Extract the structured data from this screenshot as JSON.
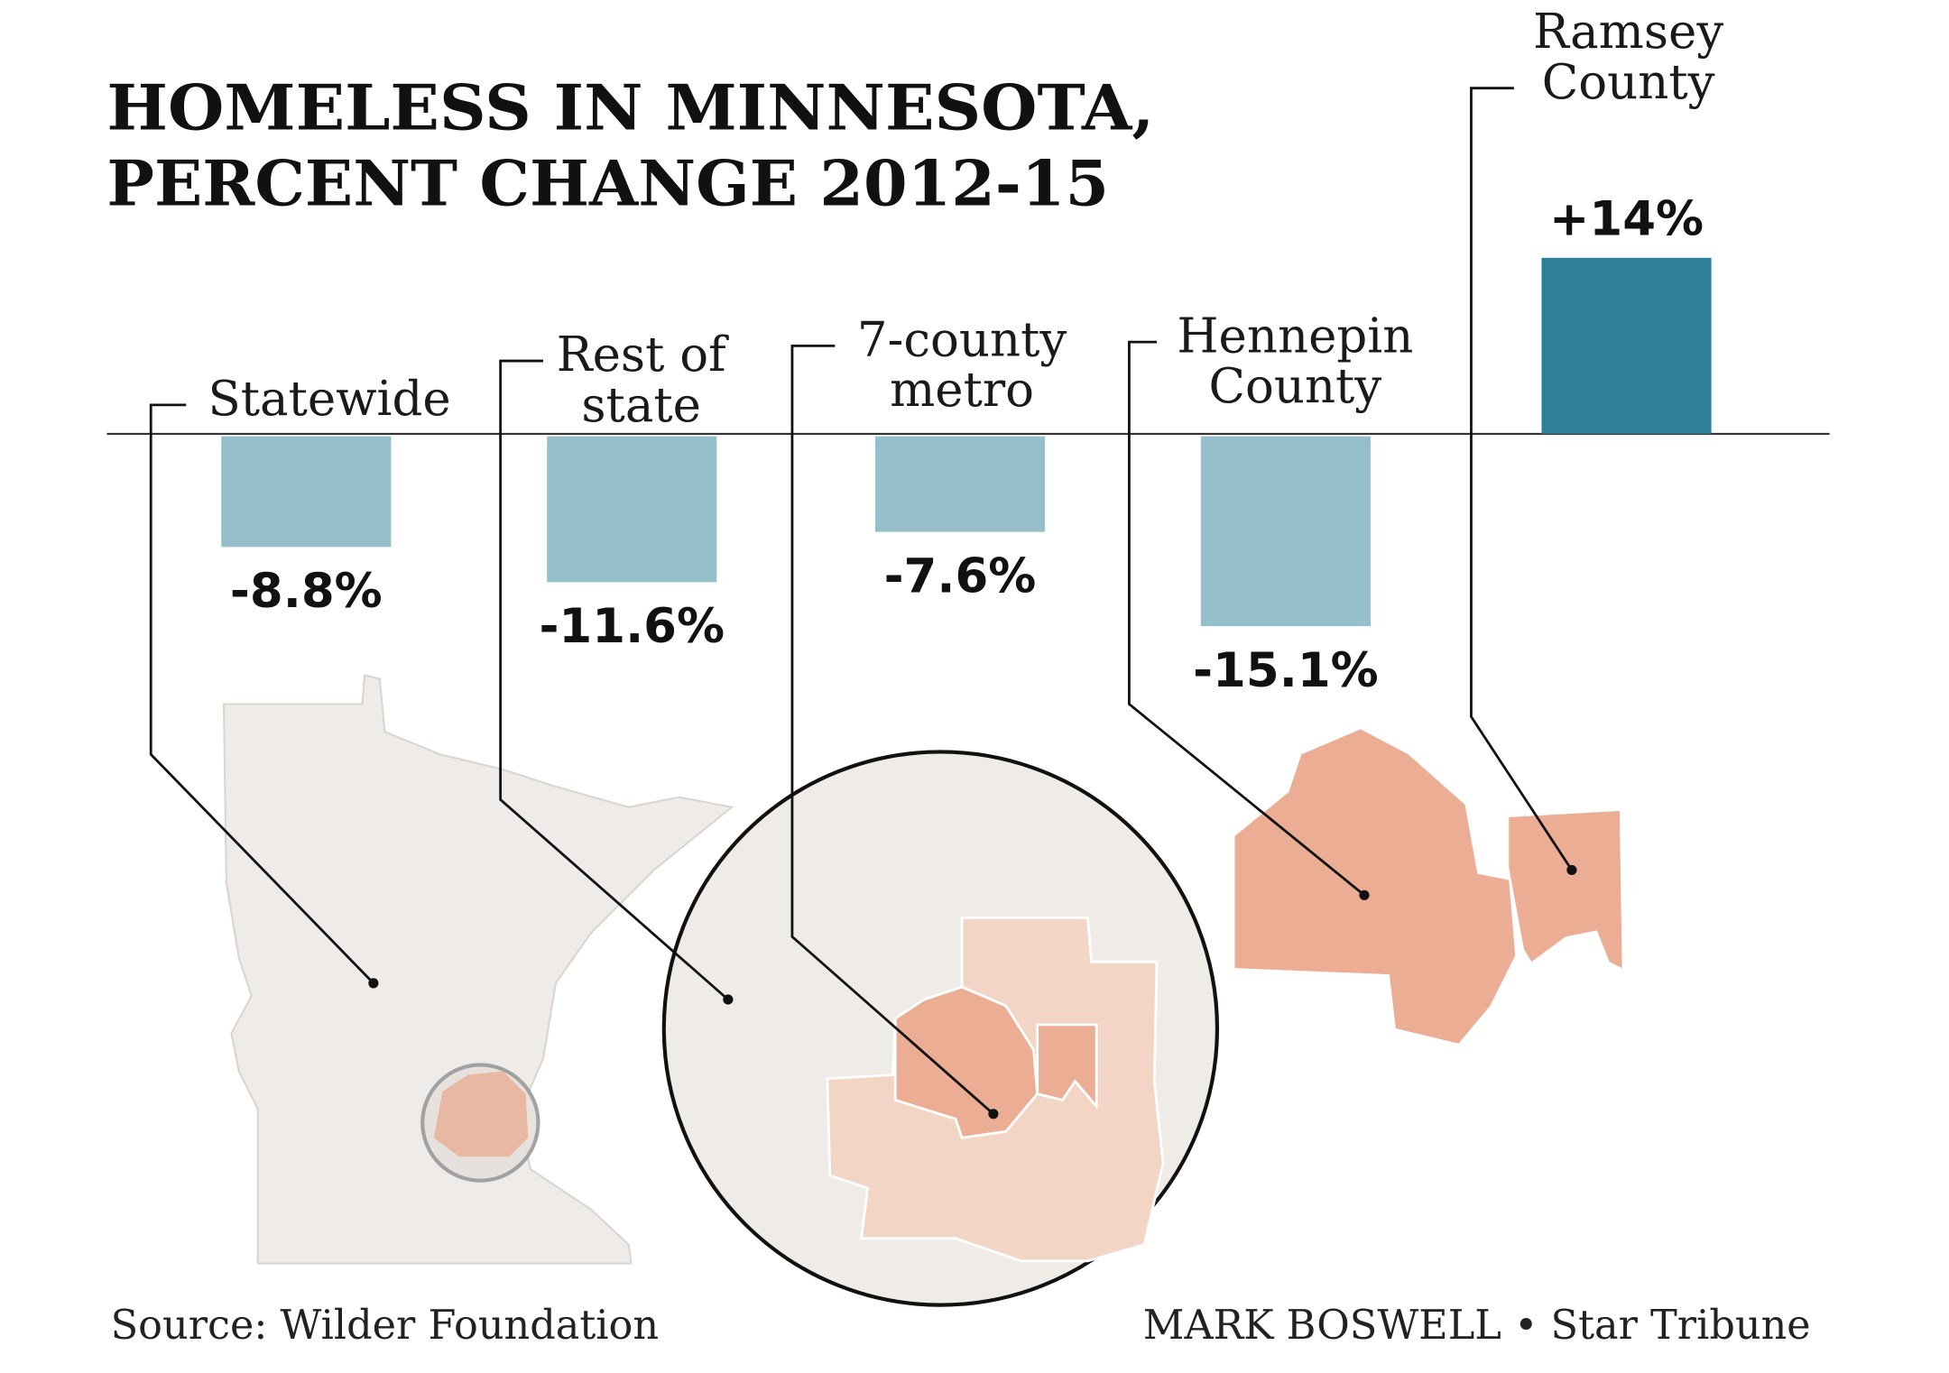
{
  "chart_data": {
    "type": "bar",
    "title": [
      "HOMELESS IN MINNESOTA,",
      "PERCENT CHANGE 2012-15"
    ],
    "xlabel": "",
    "ylabel": "Percent change",
    "ylim": [
      -16,
      15
    ],
    "grid": false,
    "categories": [
      {
        "label": [
          "Statewide"
        ],
        "value": -8.8,
        "value_label": "-8.8%"
      },
      {
        "label": [
          "Rest of",
          "state"
        ],
        "value": -11.6,
        "value_label": "-11.6%"
      },
      {
        "label": [
          "7-county",
          "metro"
        ],
        "value": -7.6,
        "value_label": "-7.6%"
      },
      {
        "label": [
          "Hennepin",
          "County"
        ],
        "value": -15.1,
        "value_label": "-15.1%"
      },
      {
        "label": [
          "Ramsey",
          "County"
        ],
        "value": 14,
        "value_label": "+14%"
      }
    ],
    "colors": {
      "negative": "#94bfcb",
      "positive": "#2e7f99",
      "state": "#eeebe8",
      "metro": "#f2d5c4",
      "county": "#ebae94"
    }
  },
  "footer": {
    "source": "Source: Wilder Foundation",
    "credit": "MARK BOSWELL • Star Tribune"
  }
}
